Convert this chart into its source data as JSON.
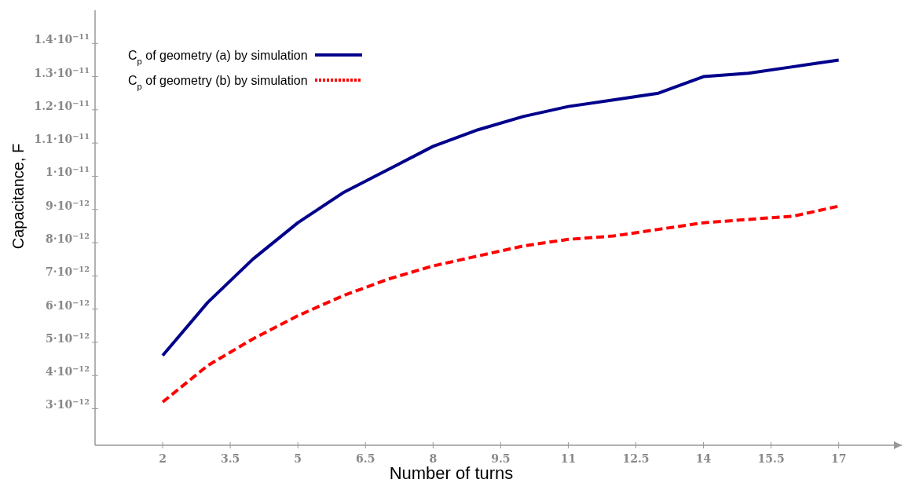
{
  "chart_data": {
    "type": "line",
    "xlabel": "Number of turns",
    "ylabel": "Capacitance, F",
    "x": [
      2,
      3,
      4,
      5,
      6,
      7,
      8,
      9,
      10,
      11,
      12,
      13,
      14,
      15,
      16,
      17
    ],
    "series": [
      {
        "name": "C$_{p}$ of geometry (a) by simulation",
        "color": "#00008b",
        "line_style": "solid",
        "values": [
          4.6e-12,
          6.2e-12,
          7.5e-12,
          8.6e-12,
          9.5e-12,
          1.02e-11,
          1.09e-11,
          1.14e-11,
          1.18e-11,
          1.21e-11,
          1.23e-11,
          1.25e-11,
          1.3e-11,
          1.31e-11,
          1.33e-11,
          1.35e-11
        ]
      },
      {
        "name": "C$_{p}$ of geometry (b) by simulation",
        "color": "#ff0000",
        "line_style": "dashed",
        "values": [
          3.2e-12,
          4.3e-12,
          5.1e-12,
          5.8e-12,
          6.4e-12,
          6.9e-12,
          7.3e-12,
          7.6e-12,
          7.9e-12,
          8.1e-12,
          8.2e-12,
          8.4e-12,
          8.6e-12,
          8.7e-12,
          8.8e-12,
          9.1e-12
        ]
      }
    ],
    "xlim": [
      0.5,
      18.4
    ],
    "xticks": [
      2,
      3.5,
      5,
      6.5,
      8,
      9.5,
      11,
      12.5,
      14,
      15.5,
      17
    ],
    "ylim": [
      1.9e-12,
      1.5e-11
    ],
    "yticks": [
      {
        "value": 3e-12,
        "label": "3·10$^{−12}$"
      },
      {
        "value": 4e-12,
        "label": "4·10$^{−12}$"
      },
      {
        "value": 5e-12,
        "label": "5·10$^{−12}$"
      },
      {
        "value": 6e-12,
        "label": "6·10$^{−12}$"
      },
      {
        "value": 7e-12,
        "label": "7·10$^{−12}$"
      },
      {
        "value": 8e-12,
        "label": "8·10$^{−12}$"
      },
      {
        "value": 9e-12,
        "label": "9·10$^{−12}$"
      },
      {
        "value": 1e-11,
        "label": "1·10$^{−11}$"
      },
      {
        "value": 1.1e-11,
        "label": "1.1·10$^{−11}$"
      },
      {
        "value": 1.2e-11,
        "label": "1.2·10$^{−11}$"
      },
      {
        "value": 1.3e-11,
        "label": "1.3·10$^{−11}$"
      },
      {
        "value": 1.4e-11,
        "label": "1.4·10$^{−11}$"
      }
    ],
    "grid": false,
    "legend": "top left"
  }
}
